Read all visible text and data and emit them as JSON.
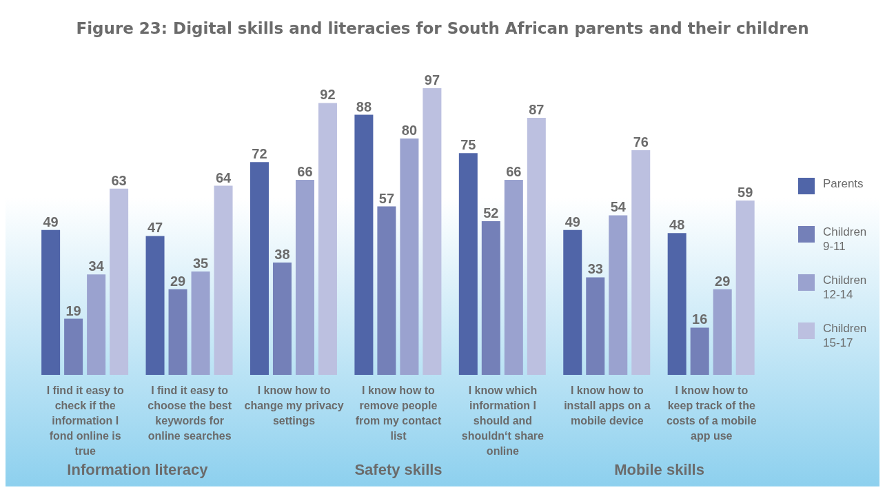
{
  "chart_data": {
    "type": "bar",
    "title": "Figure 23: Digital skills and literacies for South African parents and their children",
    "categories": [
      "I find it easy to check if the information I fond online is true",
      "I find it easy to choose the best keywords for online searches",
      "I know how to change my privacy settings",
      "I know how to remove people from my contact list",
      "I know which information I should and shouldn‘t share online",
      "I know how to install apps on a mobile device",
      "I know how to keep track of the costs of a mobile app use"
    ],
    "series": [
      {
        "name": "Parents",
        "color": "#5065a8",
        "values": [
          49,
          47,
          72,
          88,
          75,
          49,
          48
        ]
      },
      {
        "name": "Children 9-11",
        "color": "#7480b8",
        "values": [
          19,
          29,
          38,
          57,
          52,
          33,
          16
        ]
      },
      {
        "name": "Children 12-14",
        "color": "#9aa2cf",
        "values": [
          34,
          35,
          66,
          80,
          66,
          54,
          29
        ]
      },
      {
        "name": "Children 15-17",
        "color": "#bcc0e0",
        "values": [
          63,
          64,
          92,
          97,
          87,
          76,
          59
        ]
      }
    ],
    "annotations": [
      "Information literacy",
      "Safety skills",
      "Mobile skills"
    ],
    "data_labels": true,
    "legend": "right"
  }
}
